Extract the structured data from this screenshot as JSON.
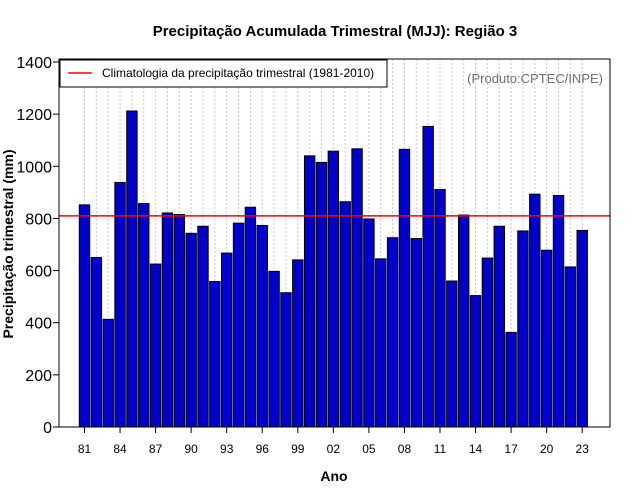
{
  "chart_data": {
    "type": "bar",
    "title": "Precipitação Acumulada Trimestral (MJJ): Região 3",
    "xlabel": "Ano",
    "ylabel": "Precipitação trimestral (mm)",
    "ylim": [
      0,
      1400
    ],
    "yticks": [
      0,
      200,
      400,
      600,
      800,
      1000,
      1200,
      1400
    ],
    "xtick_labels": [
      "81",
      "84",
      "87",
      "90",
      "93",
      "96",
      "99",
      "02",
      "05",
      "08",
      "11",
      "14",
      "17",
      "20",
      "23"
    ],
    "xtick_every": 3,
    "categories": [
      "1981",
      "1982",
      "1983",
      "1984",
      "1985",
      "1986",
      "1987",
      "1988",
      "1989",
      "1990",
      "1991",
      "1992",
      "1993",
      "1994",
      "1995",
      "1996",
      "1997",
      "1998",
      "1999",
      "2000",
      "2001",
      "2002",
      "2003",
      "2004",
      "2005",
      "2006",
      "2007",
      "2008",
      "2009",
      "2010",
      "2011",
      "2012",
      "2013",
      "2014",
      "2015",
      "2016",
      "2017",
      "2018",
      "2019",
      "2020",
      "2021",
      "2022",
      "2023"
    ],
    "values": [
      852,
      650,
      413,
      938,
      1212,
      857,
      625,
      821,
      815,
      743,
      770,
      558,
      667,
      782,
      843,
      773,
      597,
      515,
      641,
      1040,
      1015,
      1058,
      864,
      1067,
      798,
      645,
      726,
      1065,
      723,
      1153,
      911,
      560,
      813,
      504,
      648,
      770,
      363,
      752,
      893,
      678,
      888,
      614,
      754
    ],
    "climatology": {
      "label": "Climatologia da precipitação trimestral (1981-2010)",
      "value": 810
    },
    "grid": true,
    "legend_position": "top-left",
    "source": "(Produto:CPTEC/INPE)",
    "colors": {
      "bar_fill": "#0000CC",
      "bar_edge": "#000000",
      "climatology_line": "#FF0000",
      "grid": "#C8C8C8"
    }
  }
}
